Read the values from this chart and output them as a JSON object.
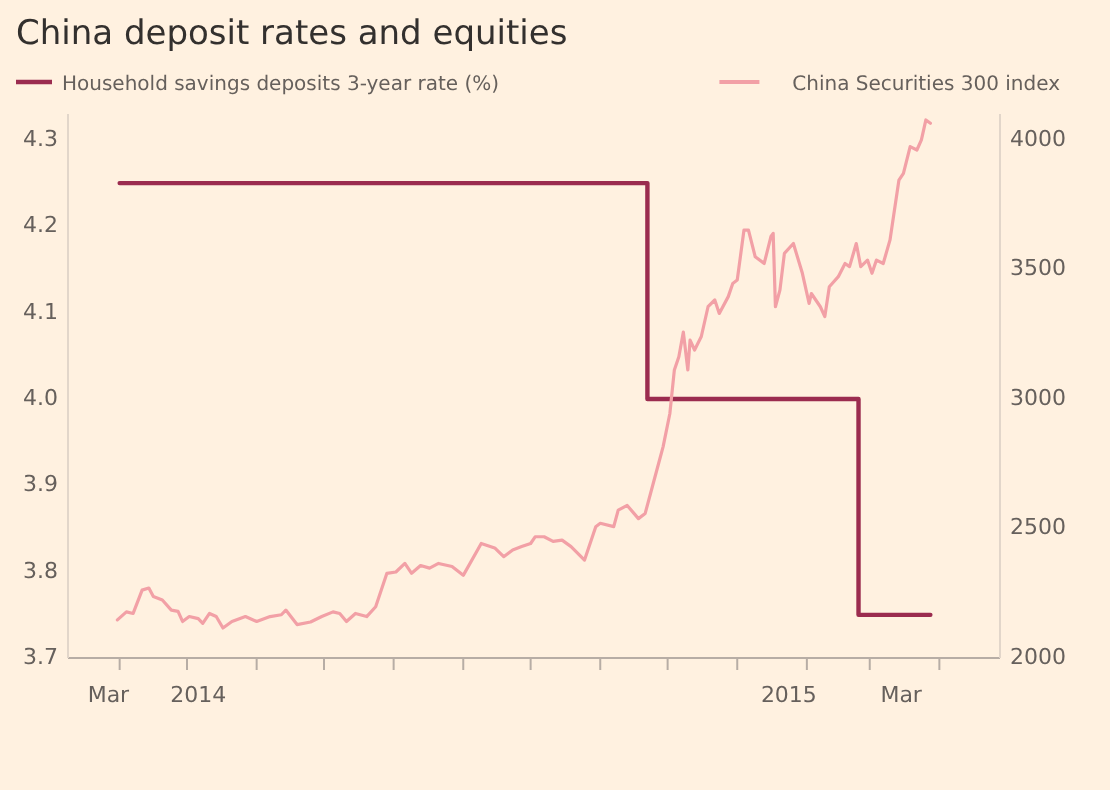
{
  "chart_data": {
    "type": "line",
    "title": "China deposit rates and equities",
    "legend": "top",
    "xlim": [
      "2014-03-09",
      "2015-04-28"
    ],
    "xticks": [
      {
        "value": "2014-03-27",
        "label": "Mar"
      },
      {
        "value": "2014-05-06",
        "label": "2014"
      },
      {
        "value": "2015-01-24",
        "label": "2015"
      },
      {
        "value": "2015-03-15",
        "label": "Mar"
      },
      {
        "value": "2014-04-01",
        "label": null
      },
      {
        "value": "2014-05-01",
        "label": null
      },
      {
        "value": "2014-06-01",
        "label": null
      },
      {
        "value": "2014-07-01",
        "label": null
      },
      {
        "value": "2014-08-01",
        "label": null
      },
      {
        "value": "2014-09-01",
        "label": null
      },
      {
        "value": "2014-10-01",
        "label": null
      },
      {
        "value": "2014-11-01",
        "label": null
      },
      {
        "value": "2014-12-01",
        "label": null
      },
      {
        "value": "2015-01-01",
        "label": null
      },
      {
        "value": "2015-02-01",
        "label": null
      },
      {
        "value": "2015-03-01",
        "label": null
      },
      {
        "value": "2015-04-01",
        "label": null
      }
    ],
    "ylim": [
      3.7,
      4.33
    ],
    "yticks": [
      3.7,
      3.8,
      3.9,
      {
        "value": 4.0,
        "label": "4.0"
      },
      4.1,
      4.2,
      4.3
    ],
    "y2lim": [
      2000,
      4100
    ],
    "y2ticks": [
      2000,
      2500,
      3000,
      3500,
      4000
    ],
    "series": [
      {
        "name": "Household savings deposits 3-year rate (%)",
        "type": "step",
        "axis": "y",
        "color": "#9b2c4f",
        "x": [
          "2014-04-01",
          "2014-11-22",
          "2015-02-24",
          "2015-03-28"
        ],
        "values": [
          4.25,
          4.0,
          3.75,
          3.75
        ]
      },
      {
        "name": "China Securities 300 index",
        "axis": "y2",
        "color": "#f2a0a6",
        "x": [
          "2014-03-31",
          "2014-04-04",
          "2014-04-07",
          "2014-04-11",
          "2014-04-14",
          "2014-04-16",
          "2014-04-20",
          "2014-04-24",
          "2014-04-27",
          "2014-04-29",
          "2014-05-02",
          "2014-05-06",
          "2014-05-08",
          "2014-05-11",
          "2014-05-14",
          "2014-05-17",
          "2014-05-21",
          "2014-05-27",
          "2014-06-01",
          "2014-06-07",
          "2014-06-12",
          "2014-06-14",
          "2014-06-19",
          "2014-06-25",
          "2014-06-30",
          "2014-07-05",
          "2014-07-08",
          "2014-07-11",
          "2014-07-15",
          "2014-07-20",
          "2014-07-24",
          "2014-07-29",
          "2014-08-02",
          "2014-08-06",
          "2014-08-09",
          "2014-08-13",
          "2014-08-17",
          "2014-08-21",
          "2014-08-27",
          "2014-09-01",
          "2014-09-09",
          "2014-09-15",
          "2014-09-19",
          "2014-09-23",
          "2014-09-27",
          "2014-10-01",
          "2014-10-03",
          "2014-10-07",
          "2014-10-11",
          "2014-10-15",
          "2014-10-19",
          "2014-10-25",
          "2014-10-30",
          "2014-11-01",
          "2014-11-07",
          "2014-11-09",
          "2014-11-13",
          "2014-11-18",
          "2014-11-21",
          "2014-11-25",
          "2014-11-29",
          "2014-12-02",
          "2014-12-04",
          "2014-12-06",
          "2014-12-08",
          "2014-12-10",
          "2014-12-11",
          "2014-12-13",
          "2014-12-16",
          "2014-12-19",
          "2014-12-22",
          "2014-12-24",
          "2014-12-28",
          "2014-12-30",
          "2015-01-01",
          "2015-01-04",
          "2015-01-06",
          "2015-01-09",
          "2015-01-13",
          "2015-01-16",
          "2015-01-17",
          "2015-01-18",
          "2015-01-20",
          "2015-01-22",
          "2015-01-26",
          "2015-01-30",
          "2015-02-02",
          "2015-02-03",
          "2015-02-07",
          "2015-02-09",
          "2015-02-11",
          "2015-02-15",
          "2015-02-18",
          "2015-02-20",
          "2015-02-23",
          "2015-02-25",
          "2015-02-28",
          "2015-03-02",
          "2015-03-04",
          "2015-03-07",
          "2015-03-10",
          "2015-03-14",
          "2015-03-16",
          "2015-03-19",
          "2015-03-22",
          "2015-03-24",
          "2015-03-26",
          "2015-03-28"
        ],
        "values": [
          2147,
          2178,
          2172,
          2262,
          2270,
          2237,
          2224,
          2185,
          2180,
          2141,
          2160,
          2152,
          2134,
          2172,
          2160,
          2116,
          2141,
          2160,
          2141,
          2160,
          2167,
          2185,
          2129,
          2139,
          2160,
          2178,
          2172,
          2141,
          2172,
          2160,
          2198,
          2327,
          2332,
          2365,
          2327,
          2357,
          2347,
          2365,
          2353,
          2319,
          2442,
          2425,
          2391,
          2417,
          2430,
          2442,
          2468,
          2468,
          2450,
          2455,
          2430,
          2378,
          2507,
          2520,
          2507,
          2571,
          2589,
          2538,
          2558,
          2687,
          2816,
          2944,
          3112,
          3163,
          3258,
          3112,
          3227,
          3189,
          3241,
          3356,
          3382,
          3330,
          3395,
          3446,
          3459,
          3652,
          3652,
          3549,
          3523,
          3627,
          3639,
          3356,
          3420,
          3562,
          3600,
          3485,
          3369,
          3407,
          3356,
          3318,
          3433,
          3472,
          3523,
          3511,
          3600,
          3511,
          3536,
          3485,
          3536,
          3523,
          3613,
          3845,
          3871,
          3974,
          3961,
          4000,
          4077,
          4064
        ]
      }
    ]
  }
}
